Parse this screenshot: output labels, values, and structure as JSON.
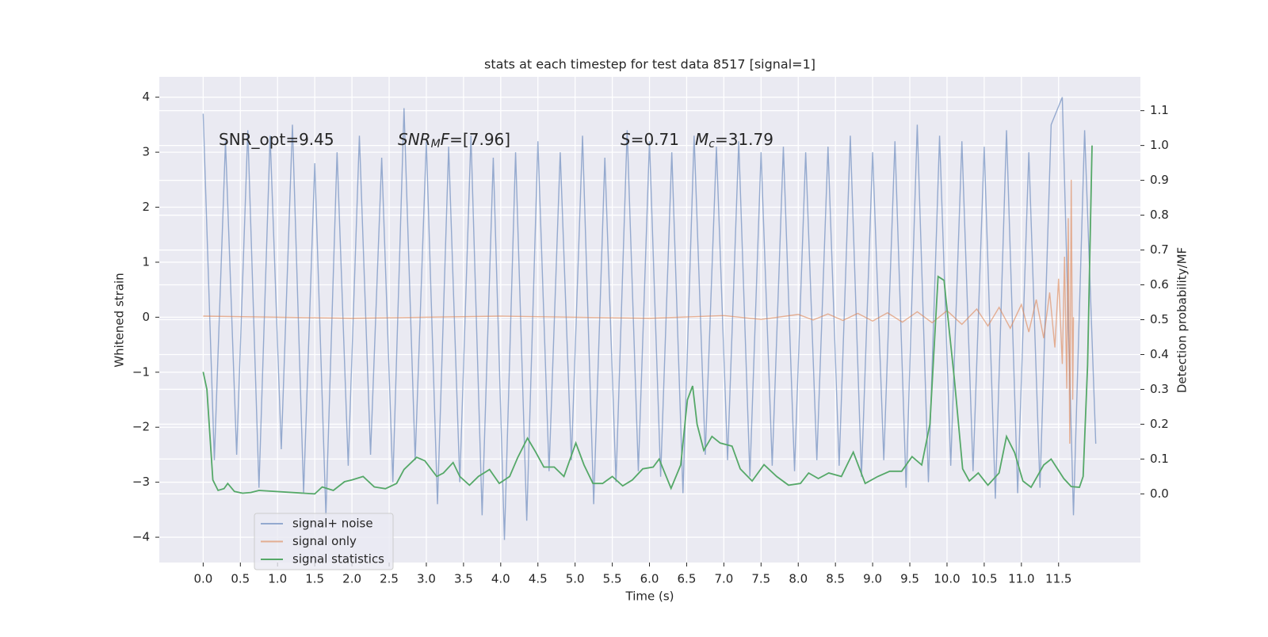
{
  "chart_data": {
    "type": "line",
    "title": "stats at each timestep for test data 8517 [signal=1]",
    "xlabel": "Time (s)",
    "ylabel": "Whitened strain",
    "y2label": "Detection probability/MF",
    "xlim": [
      -0.59,
      12.6
    ],
    "ylim": [
      -4.46,
      4.37
    ],
    "y2lim": [
      -0.197,
      1.197
    ],
    "xticks": [
      {
        "value": 0,
        "label": "0.0"
      },
      0.5,
      {
        "value": 1,
        "label": "1.0"
      },
      1.5,
      {
        "value": 2,
        "label": "2.0"
      },
      2.5,
      {
        "value": 3,
        "label": "3.0"
      },
      3.5,
      {
        "value": 4,
        "label": "4.0"
      },
      4.5,
      {
        "value": 5,
        "label": "5.0"
      },
      5.5,
      {
        "value": 6,
        "label": "6.0"
      },
      6.5,
      {
        "value": 7,
        "label": "7.0"
      },
      7.5,
      {
        "value": 8,
        "label": "8.0"
      },
      8.5,
      {
        "value": 9,
        "label": "9.0"
      },
      9.5,
      {
        "value": 10,
        "label": "10.0"
      },
      10.5,
      {
        "value": 11,
        "label": "11.0"
      },
      11.5
    ],
    "yticks": [
      {
        "value": -4,
        "label": "−4"
      },
      {
        "value": -3,
        "label": "−3"
      },
      {
        "value": -2,
        "label": "−2"
      },
      {
        "value": -1,
        "label": "−1"
      },
      0,
      1,
      2,
      3,
      4
    ],
    "y2ticks": [
      {
        "value": 0,
        "label": "0.0"
      },
      0.1,
      0.2,
      0.3,
      0.4,
      0.5,
      0.6,
      0.7,
      0.8,
      0.9,
      {
        "value": 1,
        "label": "1.0"
      },
      1.1
    ],
    "grid": true,
    "legend": "lower left",
    "annotations": [
      {
        "parts": [
          {
            "text": "SNR_opt=9.45"
          }
        ]
      },
      {
        "parts": [
          {
            "text": "SNR",
            "style": "italic"
          },
          {
            "text": "M",
            "style": "italic",
            "baseline": "sub"
          },
          {
            "text": "F",
            "style": "italic"
          },
          {
            "text": "=[7.96]"
          }
        ]
      },
      {
        "parts": [
          {
            "text": "S",
            "style": "italic"
          },
          {
            "text": "=0.71"
          }
        ]
      },
      {
        "parts": [
          {
            "text": "M",
            "style": "italic"
          },
          {
            "text": "c",
            "style": "italic",
            "baseline": "sub"
          },
          {
            "text": "=31.79"
          }
        ]
      }
    ],
    "series": [
      {
        "name": "signal+ noise",
        "color": "#4c72b0",
        "alpha": 0.55,
        "x": [
          0,
          0.15,
          0.3,
          0.45,
          0.6,
          0.75,
          0.9,
          1.05,
          1.2,
          1.35,
          1.5,
          1.65,
          1.8,
          1.95,
          2.1,
          2.25,
          2.4,
          2.55,
          2.7,
          2.85,
          3.0,
          3.15,
          3.3,
          3.45,
          3.6,
          3.75,
          3.9,
          4.05,
          4.2,
          4.35,
          4.5,
          4.65,
          4.8,
          4.95,
          5.1,
          5.25,
          5.4,
          5.55,
          5.7,
          5.85,
          6.0,
          6.15,
          6.3,
          6.45,
          6.6,
          6.75,
          6.9,
          7.05,
          7.2,
          7.35,
          7.5,
          7.65,
          7.8,
          7.95,
          8.1,
          8.25,
          8.4,
          8.55,
          8.7,
          8.85,
          9.0,
          9.15,
          9.3,
          9.45,
          9.6,
          9.75,
          9.9,
          10.05,
          10.2,
          10.35,
          10.5,
          10.65,
          10.8,
          10.95,
          11.1,
          11.25,
          11.4,
          11.55,
          11.7,
          11.85,
          12.0
        ],
        "values": [
          3.7,
          -2.6,
          3.2,
          -2.5,
          3.4,
          -3.1,
          3.3,
          -2.4,
          3.5,
          -3.2,
          2.8,
          -3.6,
          3.0,
          -2.7,
          3.3,
          -2.5,
          2.9,
          -3.0,
          3.8,
          -2.6,
          3.2,
          -3.4,
          3.1,
          -3.0,
          3.3,
          -3.6,
          2.9,
          -4.05,
          3.0,
          -3.7,
          3.2,
          -2.8,
          3.0,
          -2.6,
          3.3,
          -3.4,
          2.9,
          -3.0,
          3.4,
          -2.8,
          3.2,
          -2.9,
          3.0,
          -3.2,
          3.3,
          -2.5,
          3.1,
          -2.6,
          3.2,
          -2.9,
          3.0,
          -2.7,
          3.1,
          -2.8,
          3.0,
          -2.6,
          3.1,
          -2.7,
          3.3,
          -2.9,
          3.0,
          -2.6,
          3.2,
          -3.1,
          3.5,
          -3.0,
          3.3,
          -2.7,
          3.2,
          -2.8,
          3.1,
          -3.3,
          3.4,
          -3.2,
          3.0,
          -3.1,
          3.5,
          4.0,
          -3.6,
          3.4,
          -2.3
        ]
      },
      {
        "name": "signal only",
        "color": "#dd8452",
        "alpha": 0.6,
        "x": [
          0,
          2,
          4,
          6,
          7,
          7.5,
          8,
          8.2,
          8.4,
          8.6,
          8.8,
          9.0,
          9.2,
          9.4,
          9.6,
          9.8,
          10.0,
          10.2,
          10.4,
          10.55,
          10.7,
          10.85,
          11.0,
          11.1,
          11.2,
          11.3,
          11.38,
          11.45,
          11.5,
          11.55,
          11.58,
          11.61,
          11.63,
          11.65,
          11.67,
          11.69,
          11.7
        ],
        "values": [
          0.02,
          -0.02,
          0.02,
          -0.02,
          0.03,
          -0.04,
          0.05,
          -0.05,
          0.06,
          -0.06,
          0.07,
          -0.07,
          0.08,
          -0.09,
          0.1,
          -0.1,
          0.12,
          -0.13,
          0.15,
          -0.16,
          0.18,
          -0.2,
          0.23,
          -0.27,
          0.32,
          -0.38,
          0.45,
          -0.55,
          0.7,
          -0.85,
          1.1,
          -1.3,
          1.8,
          -2.3,
          2.5,
          -1.5,
          0.0
        ]
      },
      {
        "name": "signal statistics",
        "color": "#55a868",
        "alpha": 1,
        "axis": "y2",
        "x": [
          0,
          0.05,
          0.13,
          0.2,
          0.28,
          0.33,
          0.42,
          0.53,
          0.64,
          0.75,
          1.5,
          1.6,
          1.75,
          1.9,
          2.0,
          2.15,
          2.3,
          2.45,
          2.6,
          2.7,
          2.87,
          2.98,
          3.14,
          3.23,
          3.36,
          3.45,
          3.58,
          3.7,
          3.85,
          3.98,
          4.12,
          4.23,
          4.36,
          4.47,
          4.58,
          4.72,
          4.85,
          5.01,
          5.12,
          5.24,
          5.37,
          5.5,
          5.64,
          5.77,
          5.91,
          6.05,
          6.13,
          6.29,
          6.42,
          6.51,
          6.58,
          6.64,
          6.73,
          6.84,
          6.95,
          7.11,
          7.22,
          7.38,
          7.54,
          7.71,
          7.87,
          8.03,
          8.14,
          8.27,
          8.41,
          8.58,
          8.74,
          8.9,
          9.07,
          9.23,
          9.39,
          9.53,
          9.66,
          9.77,
          9.88,
          9.96,
          10.1,
          10.21,
          10.3,
          10.42,
          10.55,
          10.7,
          10.8,
          10.91,
          11.02,
          11.13,
          11.3,
          11.4,
          11.57,
          11.67,
          11.78,
          11.83,
          11.89,
          11.95
        ],
        "values": [
          0.35,
          0.3,
          0.04,
          0.01,
          0.015,
          0.03,
          0.007,
          0.002,
          0.004,
          0.01,
          0.0,
          0.02,
          0.01,
          0.035,
          0.04,
          0.05,
          0.02,
          0.015,
          0.03,
          0.07,
          0.105,
          0.095,
          0.05,
          0.06,
          0.09,
          0.05,
          0.025,
          0.05,
          0.07,
          0.03,
          0.05,
          0.105,
          0.16,
          0.12,
          0.077,
          0.077,
          0.05,
          0.146,
          0.083,
          0.03,
          0.03,
          0.05,
          0.023,
          0.04,
          0.072,
          0.077,
          0.1,
          0.016,
          0.083,
          0.27,
          0.31,
          0.2,
          0.125,
          0.165,
          0.146,
          0.137,
          0.072,
          0.037,
          0.084,
          0.05,
          0.025,
          0.03,
          0.06,
          0.044,
          0.06,
          0.05,
          0.12,
          0.03,
          0.05,
          0.065,
          0.065,
          0.107,
          0.083,
          0.2,
          0.624,
          0.613,
          0.327,
          0.072,
          0.037,
          0.06,
          0.025,
          0.06,
          0.165,
          0.118,
          0.037,
          0.019,
          0.083,
          0.1,
          0.044,
          0.021,
          0.019,
          0.05,
          0.37,
          1.0
        ]
      }
    ]
  }
}
